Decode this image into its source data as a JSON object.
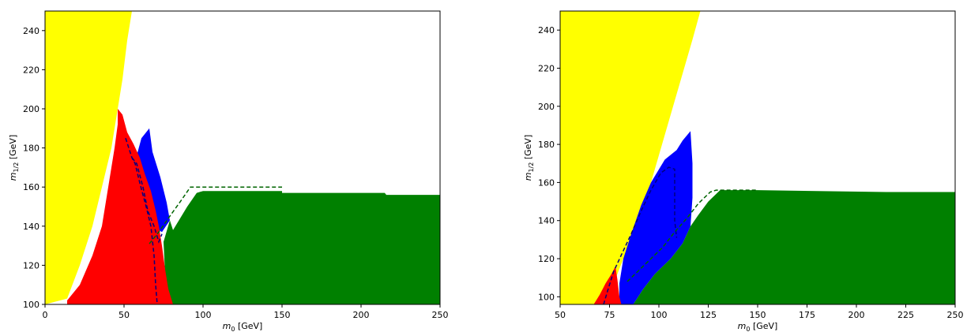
{
  "chart_data": [
    {
      "type": "area",
      "xlabel": "m_0 [GeV]",
      "ylabel": "m_1/2 [GeV]",
      "xlim": [
        0,
        250
      ],
      "ylim": [
        100,
        250
      ],
      "xticks": [
        0,
        50,
        100,
        150,
        200,
        250
      ],
      "yticks": [
        100,
        120,
        140,
        160,
        180,
        200,
        220,
        240
      ],
      "grid": false,
      "regions": [
        {
          "color": "#ffff00",
          "points": [
            [
              0,
              100
            ],
            [
              0,
              250
            ],
            [
              55,
              250
            ],
            [
              52,
              235
            ],
            [
              49,
              215
            ],
            [
              46,
              200
            ],
            [
              42,
              180
            ],
            [
              36,
              160
            ],
            [
              30,
              140
            ],
            [
              22,
              120
            ],
            [
              14,
              103
            ],
            [
              0,
              100
            ]
          ]
        },
        {
          "color": "#0000ff",
          "points": [
            [
              58,
              176
            ],
            [
              61,
              185
            ],
            [
              66,
              190
            ],
            [
              68,
              178
            ],
            [
              73,
              165
            ],
            [
              77,
              152
            ],
            [
              79,
              143
            ],
            [
              74,
              137
            ],
            [
              68,
              140
            ],
            [
              64,
              147
            ],
            [
              60,
              158
            ],
            [
              58,
              176
            ]
          ]
        },
        {
          "color": "#008000",
          "points": [
            [
              79,
              143
            ],
            [
              81,
              138
            ],
            [
              90,
              150
            ],
            [
              96,
              157
            ],
            [
              100,
              158
            ],
            [
              150,
              158
            ],
            [
              150,
              157
            ],
            [
              215,
              157
            ],
            [
              216,
              156
            ],
            [
              250,
              156
            ],
            [
              250,
              100
            ],
            [
              80,
              100
            ],
            [
              76,
              115
            ],
            [
              75,
              132
            ],
            [
              79,
              143
            ]
          ]
        },
        {
          "color": "#ff0000",
          "points": [
            [
              14,
              102
            ],
            [
              22,
              110
            ],
            [
              30,
              125
            ],
            [
              36,
              140
            ],
            [
              40,
              160
            ],
            [
              44,
              180
            ],
            [
              46,
              192
            ],
            [
              46,
              200
            ],
            [
              49,
              197
            ],
            [
              52,
              188
            ],
            [
              56,
              182
            ],
            [
              60,
              175
            ],
            [
              63,
              167
            ],
            [
              67,
              158
            ],
            [
              70,
              148
            ],
            [
              72,
              140
            ],
            [
              74,
              130
            ],
            [
              76,
              118
            ],
            [
              78,
              108
            ],
            [
              81,
              100
            ],
            [
              14,
              100
            ],
            [
              14,
              102
            ]
          ]
        }
      ],
      "dashed_lines": [
        {
          "color": "#000080",
          "points": [
            [
              51,
              185
            ],
            [
              53,
              180
            ],
            [
              55,
              175
            ],
            [
              57,
              172
            ],
            [
              60,
              162
            ],
            [
              64,
              150
            ],
            [
              67,
              140
            ],
            [
              69,
              125
            ],
            [
              70,
              110
            ],
            [
              71,
              100
            ]
          ]
        },
        {
          "color": "#000080",
          "points": [
            [
              55,
              175
            ],
            [
              58,
              172
            ],
            [
              62,
              160
            ],
            [
              65,
              148
            ],
            [
              69,
              140
            ],
            [
              72,
              132
            ],
            [
              74,
              136
            ]
          ]
        },
        {
          "color": "#006400",
          "points": [
            [
              66,
              131
            ],
            [
              72,
              137
            ],
            [
              78,
              144
            ],
            [
              86,
              153
            ],
            [
              92,
              160
            ],
            [
              150,
              160
            ]
          ]
        }
      ]
    },
    {
      "type": "area",
      "xlabel": "m_0 [GeV]",
      "ylabel": "m_1/2 [GeV]",
      "xlim": [
        50,
        250
      ],
      "ylim": [
        96,
        250
      ],
      "xticks": [
        50,
        75,
        100,
        125,
        150,
        175,
        200,
        225,
        250
      ],
      "yticks": [
        100,
        120,
        140,
        160,
        180,
        200,
        220,
        240
      ],
      "grid": false,
      "regions": [
        {
          "color": "#ffff00",
          "points": [
            [
              50,
              96
            ],
            [
              50,
              250
            ],
            [
              121,
              250
            ],
            [
              117,
              235
            ],
            [
              110,
              210
            ],
            [
              103,
              185
            ],
            [
              96,
              160
            ],
            [
              89,
              140
            ],
            [
              82,
              120
            ],
            [
              76,
              104
            ],
            [
              72,
              96
            ],
            [
              50,
              96
            ]
          ]
        },
        {
          "color": "#0000ff",
          "points": [
            [
              80,
              107
            ],
            [
              82,
              120
            ],
            [
              86,
              133
            ],
            [
              91,
              148
            ],
            [
              96,
              160
            ],
            [
              103,
              172
            ],
            [
              109,
              177
            ],
            [
              112,
              182
            ],
            [
              116,
              187
            ],
            [
              117,
              170
            ],
            [
              117,
              152
            ],
            [
              116,
              137
            ],
            [
              112,
              128
            ],
            [
              106,
              120
            ],
            [
              98,
              112
            ],
            [
              92,
              104
            ],
            [
              87,
              96
            ],
            [
              80,
              96
            ],
            [
              80,
              107
            ]
          ]
        },
        {
          "color": "#008000",
          "points": [
            [
              87,
              96
            ],
            [
              92,
              104
            ],
            [
              98,
              112
            ],
            [
              106,
              120
            ],
            [
              112,
              128
            ],
            [
              116,
              137
            ],
            [
              120,
              143
            ],
            [
              125,
              150
            ],
            [
              131,
              156
            ],
            [
              150,
              156
            ],
            [
              215,
              155
            ],
            [
              250,
              155
            ],
            [
              250,
              96
            ],
            [
              87,
              96
            ]
          ]
        },
        {
          "color": "#ff0000",
          "points": [
            [
              67,
              96
            ],
            [
              70,
              101
            ],
            [
              73,
              107
            ],
            [
              76,
              112
            ],
            [
              78,
              116
            ],
            [
              79,
              109
            ],
            [
              80,
              100
            ],
            [
              81,
              96
            ],
            [
              67,
              96
            ]
          ]
        }
      ],
      "dashed_lines": [
        {
          "color": "#000080",
          "points": [
            [
              72,
              96
            ],
            [
              74,
              103
            ],
            [
              77,
              113
            ],
            [
              81,
              122
            ],
            [
              86,
              133
            ],
            [
              91,
              145
            ],
            [
              96,
              156
            ],
            [
              101,
              165
            ],
            [
              105,
              168
            ],
            [
              108,
              167
            ],
            [
              108,
              140
            ],
            [
              109,
              131
            ]
          ]
        },
        {
          "color": "#006400",
          "points": [
            [
              84,
              108
            ],
            [
              90,
              114
            ],
            [
              96,
              120
            ],
            [
              102,
              126
            ],
            [
              108,
              134
            ],
            [
              114,
              141
            ],
            [
              120,
              149
            ],
            [
              126,
              155
            ],
            [
              129,
              156
            ],
            [
              150,
              156
            ]
          ]
        }
      ]
    }
  ]
}
